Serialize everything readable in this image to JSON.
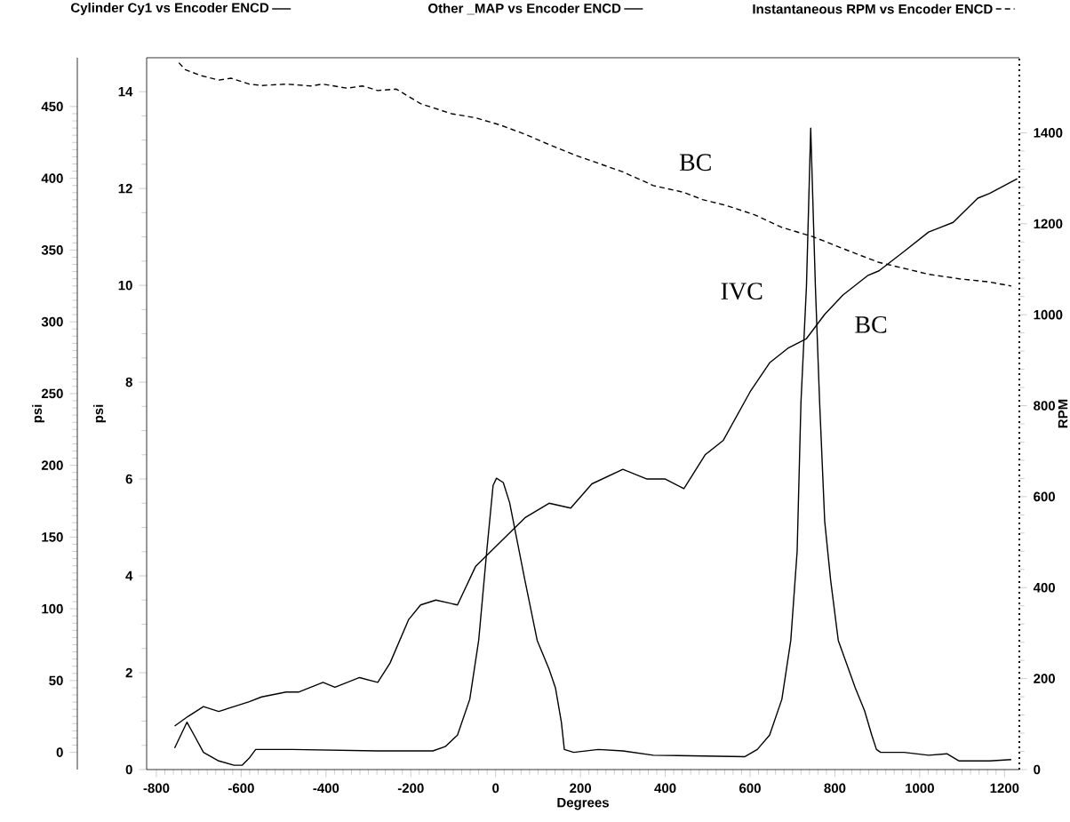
{
  "chart_data": {
    "type": "line",
    "xlabel": "Degrees",
    "ylabel": "psi",
    "y2label": "RPM",
    "y3label": "psi",
    "xlim": [
      -823,
      1235
    ],
    "xticks": [
      -800,
      -600,
      -400,
      -200,
      0,
      200,
      400,
      600,
      800,
      1000,
      1200
    ],
    "ylim": [
      0,
      14.7
    ],
    "yticks": [
      0,
      2,
      4,
      6,
      8,
      10,
      12,
      14
    ],
    "y2lim": [
      0,
      1565
    ],
    "y2ticks": [
      0,
      200,
      400,
      600,
      800,
      1000,
      1200,
      1400
    ],
    "y3lim": [
      -12,
      484
    ],
    "y3ticks": [
      0,
      50,
      100,
      150,
      200,
      250,
      300,
      350,
      400,
      450
    ],
    "legend": "top",
    "series": [
      {
        "name": "Cylinder Cy1 vs Encoder ENCD",
        "axis": "y3",
        "color": "#000000",
        "line_style": "solid",
        "x": [
          -757,
          -728,
          -711,
          -689,
          -653,
          -617,
          -598,
          -581,
          -566,
          -480,
          -278,
          -148,
          -119,
          -90,
          -61,
          -40,
          -21,
          -6,
          2,
          18,
          33,
          69,
          98,
          126,
          141,
          155,
          162,
          184,
          242,
          300,
          372,
          588,
          617,
          646,
          675,
          696,
          711,
          720,
          733,
          743,
          754,
          764,
          776,
          790,
          808,
          848,
          870,
          887,
          898,
          908,
          963,
          1021,
          1064,
          1093,
          1165,
          1216
        ],
        "values": [
          3,
          21,
          12,
          0,
          -6,
          -9,
          -9,
          -4,
          2,
          2,
          1,
          1,
          4,
          12,
          37,
          78,
          140,
          186,
          191,
          188,
          174,
          120,
          78,
          58,
          45,
          21,
          2,
          0,
          2,
          1,
          -2,
          -3,
          2,
          12,
          37,
          78,
          140,
          244,
          325,
          435,
          325,
          244,
          161,
          120,
          78,
          45,
          29,
          12,
          2,
          0,
          0,
          -2,
          -1,
          -6,
          -6,
          -5
        ]
      },
      {
        "name": "Other _MAP vs Encoder ENCD",
        "axis": "y",
        "color": "#000000",
        "line_style": "solid",
        "x": [
          -757,
          -725,
          -689,
          -653,
          -617,
          -581,
          -552,
          -494,
          -465,
          -407,
          -379,
          -321,
          -278,
          -249,
          -205,
          -177,
          -141,
          -90,
          -47,
          11,
          69,
          126,
          177,
          227,
          300,
          357,
          400,
          444,
          494,
          537,
          600,
          646,
          689,
          733,
          776,
          819,
          877,
          904,
          963,
          1021,
          1079,
          1137,
          1165,
          1230
        ],
        "values": [
          0.9,
          1.1,
          1.3,
          1.2,
          1.3,
          1.4,
          1.5,
          1.6,
          1.6,
          1.8,
          1.7,
          1.9,
          1.8,
          2.2,
          3.1,
          3.4,
          3.5,
          3.4,
          4.2,
          4.7,
          5.2,
          5.5,
          5.4,
          5.9,
          6.2,
          6.0,
          6.0,
          5.8,
          6.5,
          6.8,
          7.8,
          8.4,
          8.7,
          8.9,
          9.4,
          9.8,
          10.2,
          10.3,
          10.7,
          11.1,
          11.3,
          11.8,
          11.9,
          12.2
        ]
      },
      {
        "name": "Instantaneous RPM vs Encoder ENCD",
        "axis": "y2",
        "color": "#000000",
        "line_style": "dashed",
        "x": [
          -747,
          -732,
          -696,
          -653,
          -624,
          -581,
          -552,
          -494,
          -436,
          -408,
          -350,
          -314,
          -278,
          -234,
          -177,
          -104,
          -47,
          11,
          69,
          126,
          184,
          242,
          300,
          372,
          444,
          488,
          541,
          610,
          675,
          747,
          834,
          904,
          963,
          1021,
          1093,
          1165,
          1216
        ],
        "values": [
          1554,
          1539,
          1526,
          1516,
          1520,
          1507,
          1504,
          1507,
          1503,
          1507,
          1498,
          1503,
          1493,
          1496,
          1464,
          1442,
          1433,
          1417,
          1397,
          1374,
          1352,
          1333,
          1314,
          1284,
          1269,
          1253,
          1241,
          1220,
          1192,
          1172,
          1140,
          1115,
          1102,
          1089,
          1079,
          1072,
          1063
        ]
      }
    ],
    "annotations": [
      "BC",
      "IVC",
      "BC"
    ]
  }
}
